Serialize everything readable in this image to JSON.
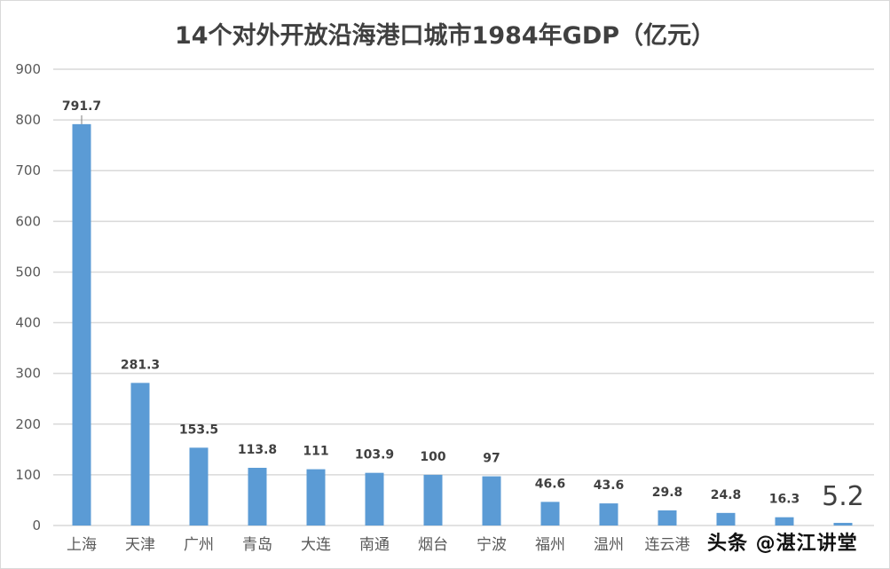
{
  "chart_data": {
    "type": "bar",
    "title": "14个对外开放沿海港口城市1984年GDP（亿元）",
    "categories": [
      "上海",
      "天津",
      "广州",
      "青岛",
      "大连",
      "南通",
      "烟台",
      "宁波",
      "福州",
      "温州",
      "连云港",
      "",
      "",
      ""
    ],
    "values": [
      791.7,
      281.3,
      153.5,
      113.8,
      111,
      103.9,
      100,
      97,
      46.6,
      43.6,
      29.8,
      24.8,
      16.3,
      5.2
    ],
    "data_labels": [
      "791.7",
      "281.3",
      "153.5",
      "113.8",
      "111",
      "103.9",
      "100",
      "97",
      "46.6",
      "43.6",
      "29.8",
      "24.8",
      "16.3",
      "5.2"
    ],
    "ylim": [
      0,
      900
    ],
    "yticks": [
      0,
      100,
      200,
      300,
      400,
      500,
      600,
      700,
      800,
      900
    ],
    "grid": true,
    "xlabel": "",
    "ylabel": "",
    "bar_color": "#5b9bd5"
  },
  "watermark": "头条 @湛江讲堂"
}
